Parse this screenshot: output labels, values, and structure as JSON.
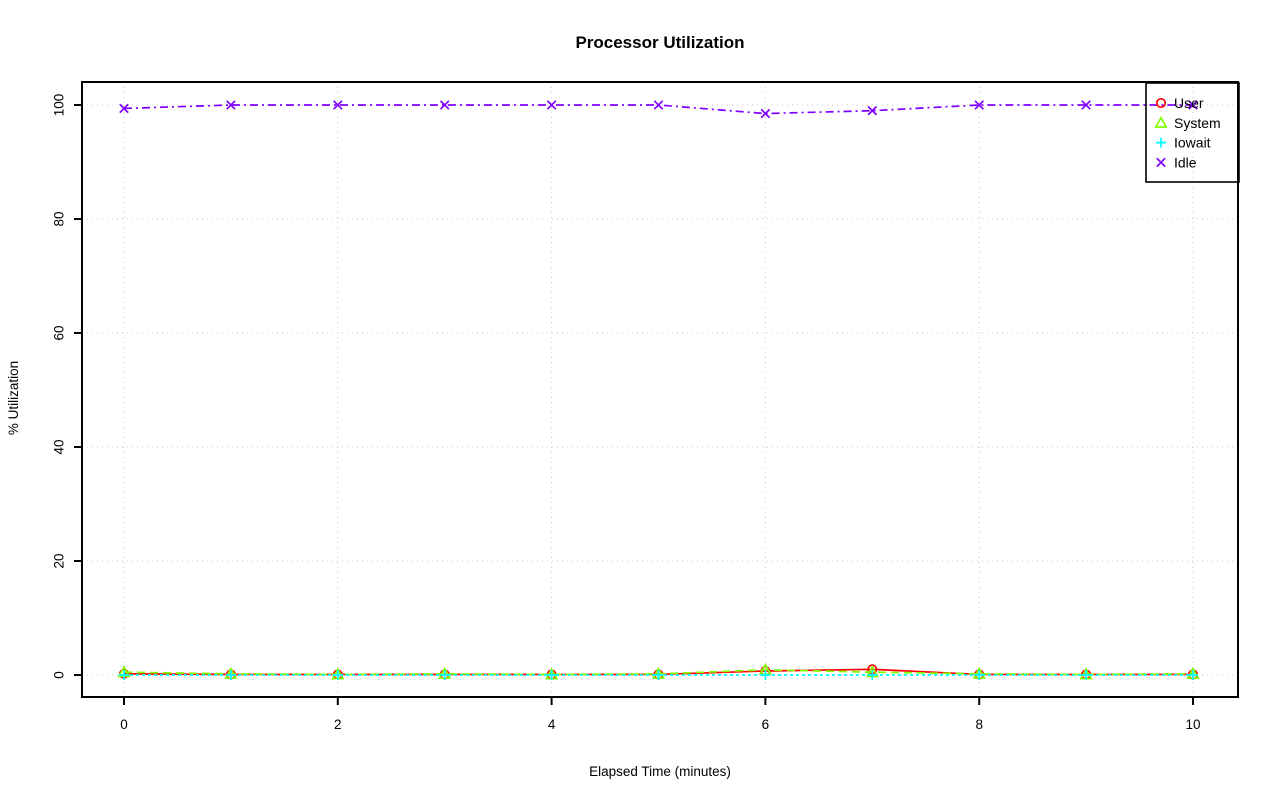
{
  "page": {
    "background_color": "#FFFFFF",
    "text_color": "#000000"
  },
  "chart_data": {
    "type": "line",
    "title": "Processor Utilization",
    "xlabel": "Elapsed Time (minutes)",
    "ylabel": "% Utilization",
    "xlim": [
      0,
      10
    ],
    "ylim": [
      0,
      100
    ],
    "xticks": [
      0,
      2,
      4,
      6,
      8,
      10
    ],
    "yticks": [
      0,
      20,
      40,
      60,
      80,
      100
    ],
    "grid": true,
    "grid_color": "#C8C8C8",
    "axis_color": "#000000",
    "legend_position": "top-right",
    "legend_entries": [
      "User",
      "System",
      "Iowait",
      "Idle"
    ],
    "x": [
      0,
      1,
      2,
      3,
      4,
      5,
      6,
      7,
      8,
      9,
      10
    ],
    "series": [
      {
        "name": "User",
        "color": "#FF0000",
        "marker": "circle",
        "linestyle": "solid",
        "values": [
          0.2,
          0.1,
          0.1,
          0.1,
          0.1,
          0.1,
          0.7,
          1.0,
          0.1,
          0.1,
          0.1
        ]
      },
      {
        "name": "System",
        "color": "#80FF00",
        "marker": "triangle",
        "linestyle": "dashed",
        "values": [
          0.5,
          0.2,
          0.1,
          0.2,
          0.1,
          0.2,
          0.9,
          0.5,
          0.2,
          0.1,
          0.2
        ]
      },
      {
        "name": "Iowait",
        "color": "#00FFFF",
        "marker": "plus",
        "linestyle": "dotted",
        "values": [
          0,
          0,
          0,
          0,
          0,
          0,
          0,
          0,
          0,
          0,
          0
        ]
      },
      {
        "name": "Idle",
        "color": "#8000FF",
        "marker": "x-cross",
        "linestyle": "dotdash",
        "values": [
          99.4,
          100,
          100,
          100,
          100,
          100,
          98.5,
          99,
          100,
          100,
          100
        ]
      }
    ]
  }
}
